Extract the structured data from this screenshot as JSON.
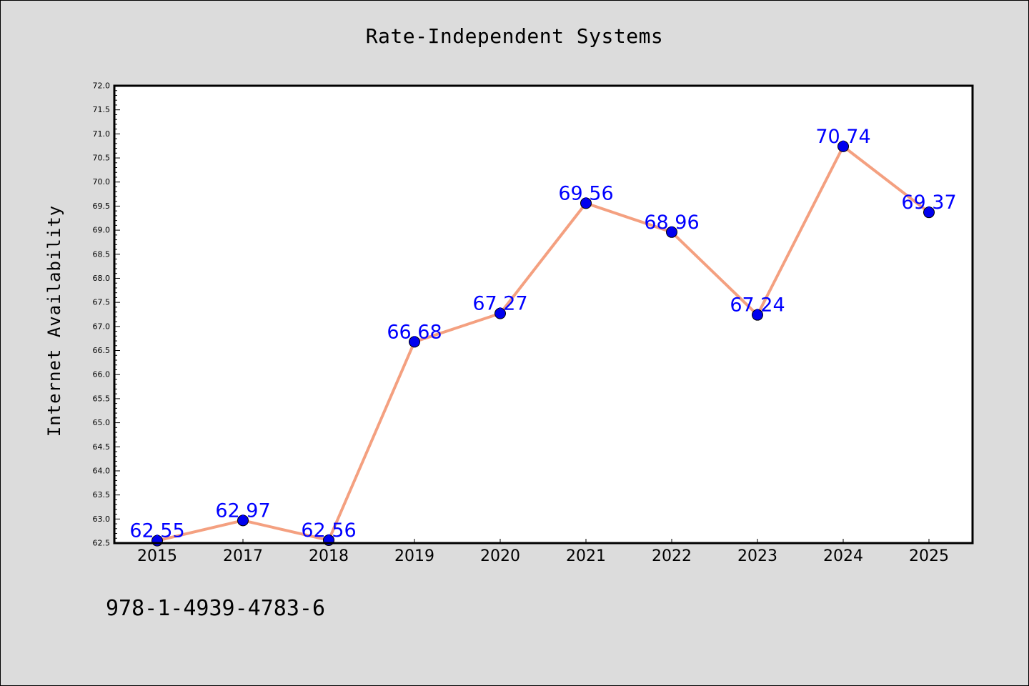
{
  "chart_data": {
    "type": "line",
    "title": "Rate-Independent Systems",
    "xlabel": "",
    "ylabel": "Internet Availability",
    "categories": [
      "2015",
      "2017",
      "2018",
      "2019",
      "2020",
      "2021",
      "2022",
      "2023",
      "2024",
      "2025"
    ],
    "series": [
      {
        "values": [
          62.55,
          62.97,
          62.56,
          66.68,
          67.27,
          69.56,
          68.96,
          67.24,
          70.74,
          69.37
        ],
        "labels": [
          "62.55",
          "62.97",
          "62.56",
          "66.68",
          "67.27",
          "69.56",
          "68.96",
          "67.24",
          "70.74",
          "69.37"
        ],
        "line_color": "#f4a080",
        "marker_color": "#0000ee",
        "label_color": "#0000ff"
      }
    ],
    "ylim": [
      62.5,
      72.0
    ],
    "yticks": [
      "62.5",
      "63.0",
      "63.5",
      "64.0",
      "64.5",
      "65.0",
      "65.5",
      "66.0",
      "66.5",
      "67.0",
      "67.5",
      "68.0",
      "68.5",
      "69.0",
      "69.5",
      "70.0",
      "70.5",
      "71.0",
      "71.5",
      "72.0"
    ],
    "grid": false,
    "legend": "none"
  },
  "footer": {
    "isbn": "978-1-4939-4783-6"
  },
  "colors": {
    "background": "#dcdcdc",
    "plot_background": "#ffffff"
  }
}
